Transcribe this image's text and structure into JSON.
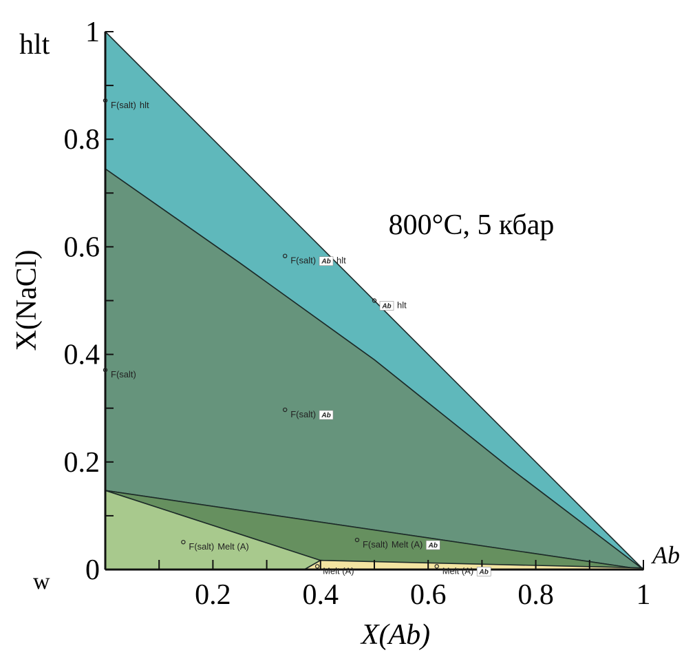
{
  "chart_data": {
    "type": "phase-diagram",
    "annotation": "800°C, 5 кбар",
    "x_label": "X(Ab)",
    "y_label": "X(NaCl)",
    "corner_labels": {
      "top": "hlt",
      "origin": "w",
      "right": "Ab"
    },
    "xlim": [
      0,
      1
    ],
    "ylim": [
      0,
      1
    ],
    "xticks": [
      0.2,
      0.4,
      0.6,
      0.8,
      1
    ],
    "yticks": [
      0,
      0.2,
      0.4,
      0.6,
      0.8,
      1
    ],
    "xminorticks": [
      0.1,
      0.3,
      0.5,
      0.7,
      0.9
    ],
    "yminorticks": [
      0.1,
      0.3,
      0.5,
      0.7,
      0.9
    ],
    "regions": [
      {
        "color": "#5fb8bb",
        "x": [
          0,
          1,
          0.75,
          0.5,
          0.25,
          0
        ],
        "y": [
          1,
          0,
          0.19,
          0.39,
          0.57,
          0.745
        ]
      },
      {
        "color": "#66947c",
        "x": [
          0,
          0.25,
          0.5,
          0.75,
          1,
          0
        ],
        "y": [
          0.745,
          0.57,
          0.39,
          0.19,
          0,
          0.147
        ]
      },
      {
        "color": "#66905f",
        "x": [
          0,
          1,
          0.4
        ],
        "y": [
          0.147,
          0,
          0.017
        ]
      },
      {
        "color": "#a8c98d",
        "x": [
          0,
          0.4,
          0.37,
          0
        ],
        "y": [
          0.147,
          0.017,
          0,
          0
        ]
      },
      {
        "color": "#f3e4a2",
        "x": [
          0.37,
          0.4,
          1,
          1
        ],
        "y": [
          0,
          0.017,
          0.003,
          0
        ]
      }
    ],
    "points": [
      {
        "x": 0,
        "y": 0.872,
        "label": [
          {
            "text": "F(salt)"
          },
          {
            "text": "hlt"
          }
        ]
      },
      {
        "x": 0.334,
        "y": 0.583,
        "label": [
          {
            "text": "F(salt)"
          },
          {
            "text": "Ab",
            "boxed": true
          },
          {
            "text": "hlt"
          }
        ]
      },
      {
        "x": 0.5,
        "y": 0.5,
        "label": [
          {
            "text": "Ab",
            "boxed": true
          },
          {
            "text": "hlt"
          }
        ]
      },
      {
        "x": 0,
        "y": 0.371,
        "label": [
          {
            "text": "F(salt)"
          }
        ]
      },
      {
        "x": 0.334,
        "y": 0.297,
        "label": [
          {
            "text": "F(salt)"
          },
          {
            "text": "Ab",
            "boxed": true
          }
        ]
      },
      {
        "x": 0.145,
        "y": 0.051,
        "label": [
          {
            "text": "F(salt)"
          },
          {
            "text": "Melt (A)"
          }
        ]
      },
      {
        "x": 0.468,
        "y": 0.055,
        "label": [
          {
            "text": "F(salt)"
          },
          {
            "text": "Melt (A)"
          },
          {
            "text": "Ab",
            "boxed": true
          }
        ]
      },
      {
        "x": 0.394,
        "y": 0.006,
        "label": [
          {
            "text": "Melt (A)"
          }
        ]
      },
      {
        "x": 0.616,
        "y": 0.006,
        "label": [
          {
            "text": "Melt (A)"
          },
          {
            "text": "Ab",
            "boxed": true
          }
        ]
      }
    ]
  }
}
